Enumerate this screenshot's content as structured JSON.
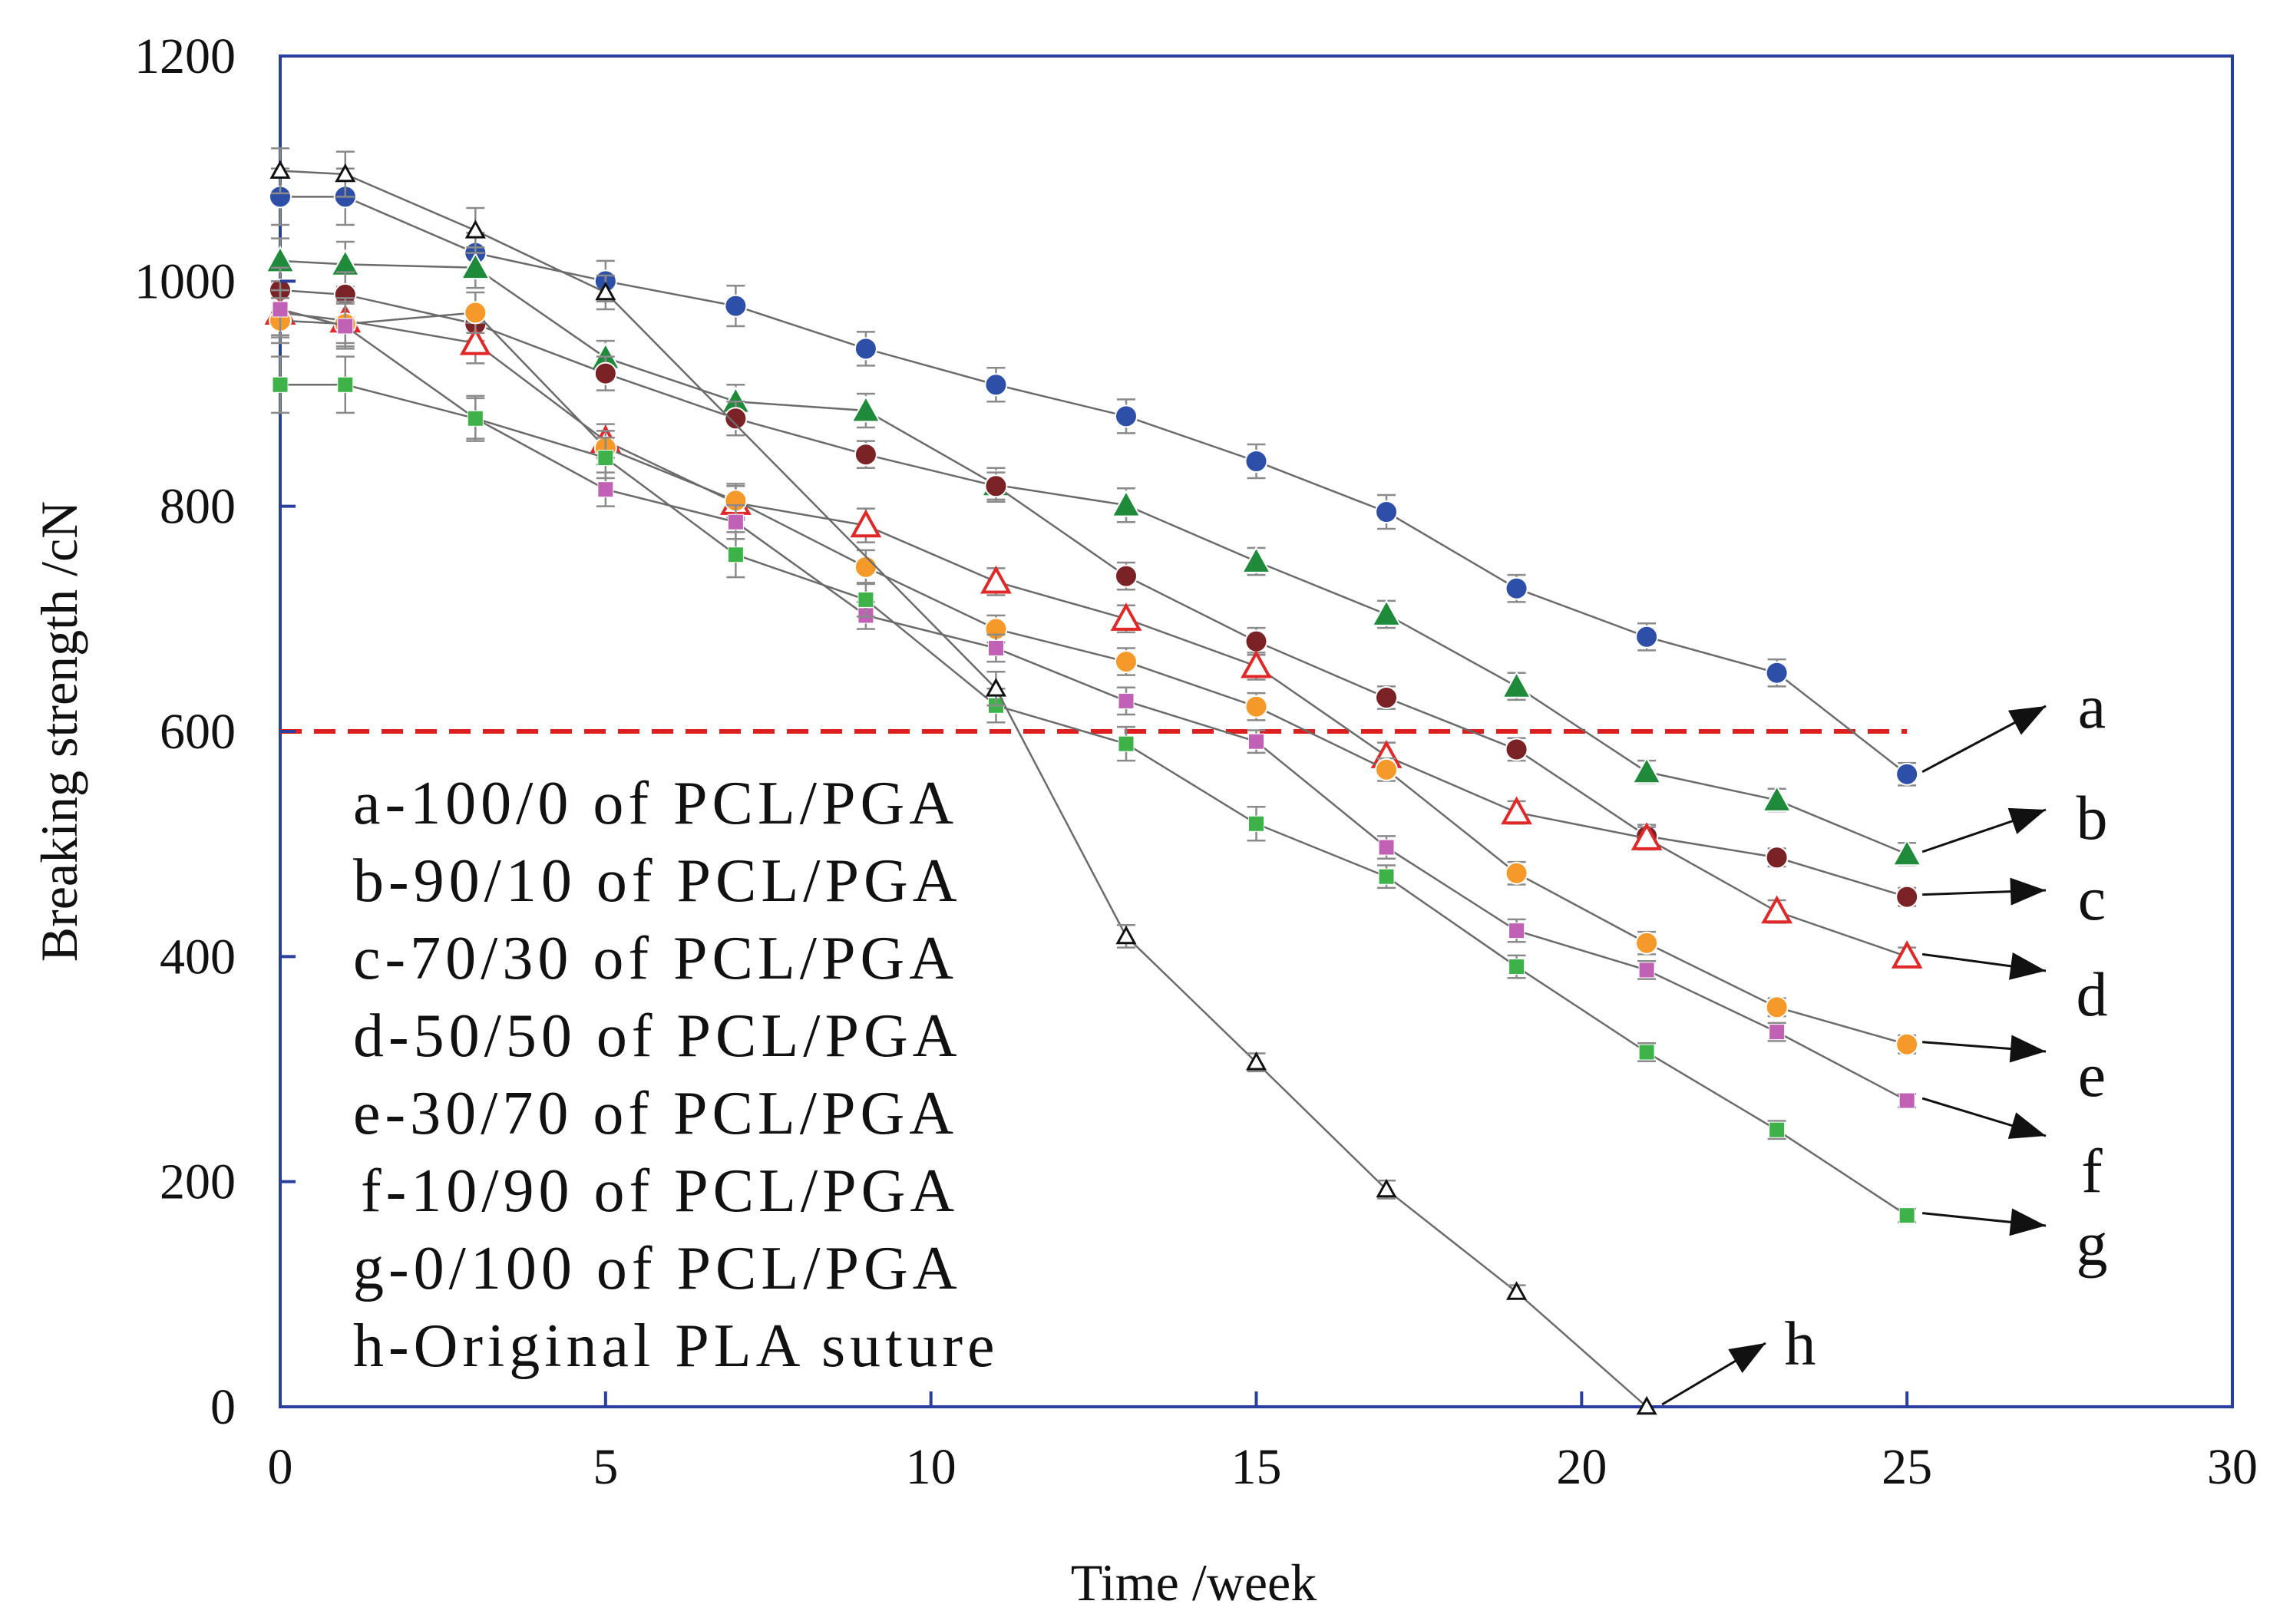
{
  "chart_data": {
    "type": "line",
    "title": "",
    "xlabel": "Time /week",
    "ylabel": "Breaking strength /cN",
    "xlim": [
      0,
      30
    ],
    "ylim": [
      0,
      1200
    ],
    "xticks": [
      0,
      5,
      10,
      15,
      20,
      25,
      30
    ],
    "yticks": [
      0,
      200,
      400,
      600,
      800,
      1000,
      1200
    ],
    "threshold": {
      "value": 600,
      "x_range": [
        0,
        25
      ],
      "color": "#dd1f1f",
      "style": "dashed"
    },
    "legend": [
      "a-100/0 of PCL/PGA",
      "b-90/10 of PCL/PGA",
      "c-70/30 of PCL/PGA",
      "d-50/50 of PCL/PGA",
      "e-30/70 of PCL/PGA",
      "f-10/90 of PCL/PGA",
      "g-0/100 of PCL/PGA",
      "h-Original PLA suture"
    ],
    "series": [
      {
        "name": "a",
        "label": "a",
        "marker": "circle",
        "color": "#2e4fa8",
        "x": [
          0,
          1,
          3,
          5,
          7,
          9,
          11,
          13,
          15,
          17,
          19,
          21,
          23,
          25
        ],
        "values": [
          1075,
          1075,
          1025,
          1000,
          978,
          940,
          908,
          880,
          840,
          795,
          727,
          684,
          652,
          562
        ],
        "errors": [
          25,
          25,
          18,
          18,
          18,
          15,
          15,
          15,
          15,
          15,
          12,
          12,
          12,
          10
        ]
      },
      {
        "name": "b",
        "label": "b",
        "marker": "triangle",
        "color": "#1e8a3a",
        "x": [
          0,
          1,
          3,
          5,
          7,
          9,
          11,
          13,
          15,
          17,
          19,
          21,
          23,
          25
        ],
        "values": [
          1018,
          1015,
          1012,
          932,
          893,
          885,
          819,
          801,
          751,
          704,
          640,
          564,
          539,
          491
        ],
        "errors": [
          20,
          20,
          18,
          15,
          15,
          15,
          15,
          15,
          12,
          12,
          12,
          10,
          10,
          10
        ]
      },
      {
        "name": "c",
        "label": "c",
        "marker": "circle",
        "color": "#7a2226",
        "x": [
          0,
          1,
          3,
          5,
          7,
          9,
          11,
          13,
          15,
          17,
          19,
          21,
          23,
          25
        ],
        "values": [
          992,
          988,
          962,
          918,
          878,
          846,
          818,
          738,
          680,
          630,
          584,
          507,
          488,
          453
        ],
        "errors": [
          20,
          20,
          15,
          15,
          15,
          12,
          12,
          12,
          12,
          10,
          10,
          10,
          8,
          8
        ]
      },
      {
        "name": "d",
        "label": "d",
        "marker": "triangle-open",
        "color": "#e02828",
        "x": [
          0,
          1,
          3,
          5,
          7,
          9,
          11,
          13,
          15,
          17,
          19,
          21,
          23,
          25
        ],
        "values": [
          972,
          965,
          945,
          858,
          803,
          783,
          733,
          700,
          658,
          578,
          528,
          505,
          440,
          400
        ],
        "errors": [
          20,
          20,
          18,
          15,
          15,
          15,
          12,
          12,
          12,
          12,
          10,
          10,
          10,
          8
        ]
      },
      {
        "name": "e",
        "label": "e",
        "marker": "circle",
        "color": "#f59a2a",
        "x": [
          0,
          1,
          3,
          5,
          7,
          9,
          11,
          13,
          15,
          17,
          19,
          21,
          23,
          25
        ],
        "values": [
          965,
          962,
          972,
          852,
          805,
          746,
          691,
          662,
          622,
          566,
          474,
          412,
          355,
          322
        ],
        "errors": [
          20,
          20,
          18,
          15,
          15,
          15,
          12,
          12,
          12,
          10,
          10,
          10,
          8,
          8
        ]
      },
      {
        "name": "f",
        "label": "f",
        "marker": "square",
        "color": "#c061b5",
        "x": [
          0,
          1,
          3,
          5,
          7,
          9,
          11,
          13,
          15,
          17,
          19,
          21,
          23,
          25
        ],
        "values": [
          975,
          960,
          878,
          815,
          786,
          703,
          674,
          627,
          591,
          497,
          423,
          388,
          333,
          272
        ],
        "errors": [
          25,
          20,
          18,
          15,
          15,
          12,
          12,
          12,
          10,
          10,
          10,
          8,
          8,
          6
        ]
      },
      {
        "name": "g",
        "label": "g",
        "marker": "square",
        "color": "#3db249",
        "x": [
          0,
          1,
          3,
          5,
          7,
          9,
          11,
          13,
          15,
          17,
          19,
          21,
          23,
          25
        ],
        "values": [
          908,
          908,
          878,
          843,
          757,
          717,
          623,
          589,
          518,
          471,
          391,
          315,
          246,
          170
        ],
        "errors": [
          25,
          25,
          20,
          18,
          20,
          15,
          15,
          15,
          15,
          10,
          10,
          8,
          8,
          6
        ]
      },
      {
        "name": "h",
        "label": "h",
        "marker": "triangle-small",
        "color": "#111111",
        "x": [
          0,
          1,
          3,
          5,
          11,
          13,
          15,
          17,
          19,
          21
        ],
        "values": [
          1098,
          1095,
          1045,
          990,
          638,
          418,
          306,
          193,
          102,
          0
        ],
        "errors": [
          20,
          20,
          20,
          15,
          15,
          10,
          8,
          8,
          6,
          0
        ]
      }
    ]
  }
}
